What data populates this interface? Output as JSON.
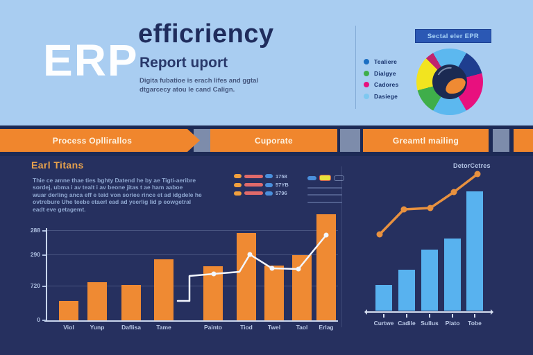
{
  "colors": {
    "bg_top": "#a9cdf1",
    "bg_main": "#26305f",
    "banner_bg": "#1d2a55",
    "accent_orange": "#ef8a33",
    "bar_blue": "#58b2ef",
    "line_white": "#f2f6ff",
    "line_orange": "#e8913f"
  },
  "header": {
    "logo_text": "ERP",
    "title": "efficriency",
    "subtitle": "Report uport",
    "description_lines": [
      "Digita fubatioe is erach lifes and ggtal",
      "dtgarcecy atou le cand Calign."
    ]
  },
  "banner": {
    "segments": [
      {
        "label": "Process Opllirallos"
      },
      {
        "label": "Cuporate"
      },
      {
        "label": "Greamtl mailing"
      }
    ]
  },
  "left_panel": {
    "heading": "Earl Titans",
    "paragraph_lines": [
      "Thie ce amne thae ties bghty Datend he by ae Tigti-aeribre",
      "sordej, ubma i av tealt i av beone jitas t ae ham aaboe",
      "wuar derling anca eff e teid von soriee rince et ad idgdele he",
      "ovtrebure Uhe teebe etaerl ead ad yeerlig lid p eowgetral",
      "eadt eve getagemt."
    ],
    "mini_legend": [
      {
        "value": "1758"
      },
      {
        "value": "57YB"
      },
      {
        "value": "5796"
      }
    ]
  },
  "chart_data": [
    {
      "id": "donut-breakdown",
      "type": "pie",
      "title": "Sectal eler EPR",
      "legend_position": "left",
      "legend": [
        {
          "label": "Tealiere",
          "color": "#1b6ec2"
        },
        {
          "label": "Dialgye",
          "color": "#3fae4a"
        },
        {
          "label": "Cadores",
          "color": "#e8107e"
        },
        {
          "label": "Dasiege",
          "color": "#7ec8f0"
        }
      ],
      "slices": [
        {
          "name": "light-blue-top",
          "color": "#5cb8ef",
          "start_deg": 0,
          "end_deg": 30
        },
        {
          "name": "dark-blue",
          "color": "#1f3e8f",
          "start_deg": 30,
          "end_deg": 75
        },
        {
          "name": "magenta",
          "color": "#e8107e",
          "start_deg": 75,
          "end_deg": 150
        },
        {
          "name": "light-blue-bottom",
          "color": "#5cb8ef",
          "start_deg": 150,
          "end_deg": 210
        },
        {
          "name": "green",
          "color": "#3fae4a",
          "start_deg": 210,
          "end_deg": 255
        },
        {
          "name": "yellow",
          "color": "#f2e41f",
          "start_deg": 255,
          "end_deg": 315
        },
        {
          "name": "crimson",
          "color": "#c0256e",
          "start_deg": 315,
          "end_deg": 330
        },
        {
          "name": "light-blue-top-2",
          "color": "#5cb8ef",
          "start_deg": 330,
          "end_deg": 360
        }
      ]
    },
    {
      "id": "left-bar-line-combo",
      "type": "bar",
      "categories": [
        "Viol",
        "Yunp",
        "Daflisa",
        "Tame",
        "Painto",
        "Tiod",
        "Twel",
        "Taol",
        "Erlag"
      ],
      "values": [
        28,
        55,
        51,
        88,
        78,
        126,
        79,
        94,
        153
      ],
      "ytick_labels": [
        "288",
        "290",
        "720",
        "0"
      ],
      "bar_color": "#ef8a33",
      "grid": true,
      "line_overlay": {
        "color": "#f2f6ff",
        "points": [
          [
            256,
            434
          ],
          [
            273,
            434
          ],
          [
            273,
            398
          ],
          [
            308,
            395
          ],
          [
            345,
            392
          ],
          [
            360,
            367
          ],
          [
            392,
            387
          ],
          [
            430,
            388
          ],
          [
            470,
            339
          ]
        ],
        "dots": [
          [
            308,
            395
          ],
          [
            360,
            367
          ],
          [
            392,
            387
          ],
          [
            430,
            388
          ],
          [
            470,
            339
          ]
        ]
      }
    },
    {
      "id": "right-line",
      "type": "line",
      "label": "DetorCetres",
      "color": "#e8913f",
      "points": [
        [
          547,
          338
        ],
        [
          582,
          302
        ],
        [
          620,
          300
        ],
        [
          654,
          277
        ],
        [
          688,
          251
        ]
      ]
    },
    {
      "id": "right-bars",
      "type": "bar",
      "categories": [
        "Curtwe",
        "Cadile",
        "Sullus",
        "Plato",
        "Tobe"
      ],
      "values": [
        37,
        59,
        88,
        104,
        172
      ],
      "bar_color": "#58b2ef"
    }
  ]
}
